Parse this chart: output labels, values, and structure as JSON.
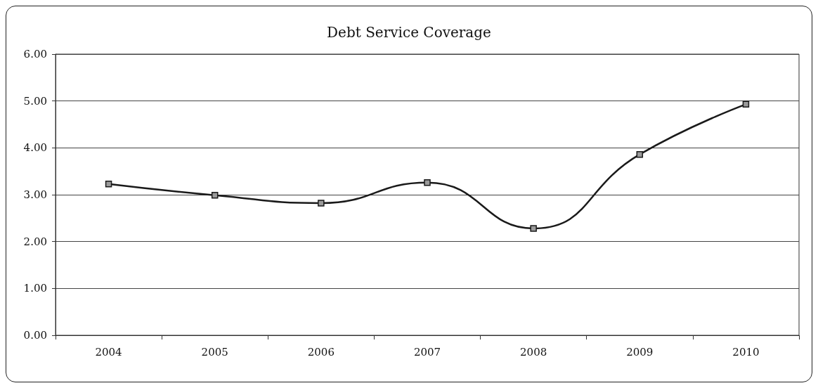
{
  "chart_data": {
    "type": "line",
    "title": "Debt Service Coverage",
    "categories": [
      "2004",
      "2005",
      "2006",
      "2007",
      "2008",
      "2009",
      "2010"
    ],
    "series": [
      {
        "color": "#1a1a1a",
        "values": [
          3.23,
          2.99,
          2.82,
          3.26,
          2.28,
          3.86,
          4.93
        ]
      }
    ],
    "ylim": [
      0,
      6
    ],
    "yticks": [
      {
        "value": 0,
        "label": "0.00"
      },
      {
        "value": 1,
        "label": "1.00"
      },
      {
        "value": 2,
        "label": "2.00"
      },
      {
        "value": 3,
        "label": "3.00"
      },
      {
        "value": 4,
        "label": "4.00"
      },
      {
        "value": 5,
        "label": "5.00"
      },
      {
        "value": 6,
        "label": "6.00"
      }
    ],
    "grid": "y",
    "marker": "square",
    "line_style": "solid"
  }
}
